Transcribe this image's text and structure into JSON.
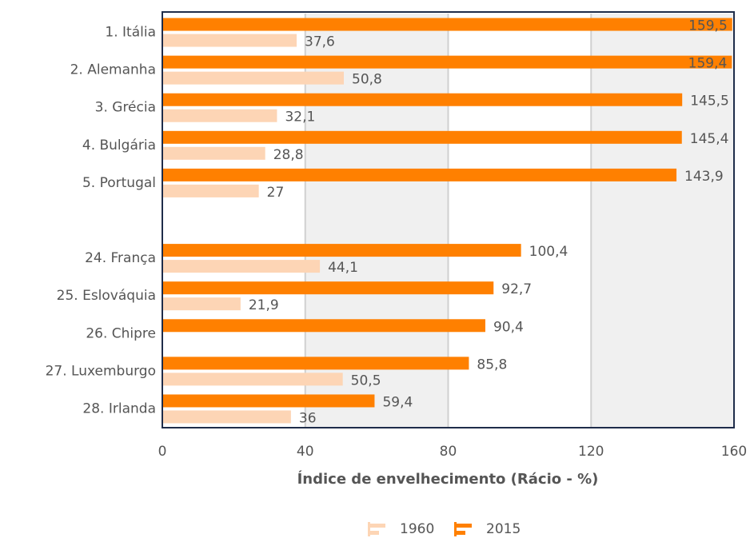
{
  "chart_data": {
    "type": "hbar",
    "x_label": "Índice de envelhecimento (Rácio - %)",
    "categories": [
      "1. Itália",
      "2. Alemanha",
      "3. Grécia",
      "4. Bulgária",
      "5. Portugal",
      null,
      "24. França",
      "25. Eslováquia",
      "26. Chipre",
      "27. Luxemburgo",
      "28. Irlanda"
    ],
    "series": [
      {
        "name": "2015",
        "color": "#ff8000",
        "values": [
          159.5,
          159.4,
          145.5,
          145.4,
          143.9,
          null,
          100.4,
          92.7,
          90.4,
          85.8,
          59.4
        ],
        "value_labels": [
          "159,5",
          "159,4",
          "145,5",
          "145,4",
          "143,9",
          null,
          "100,4",
          "92,7",
          "90,4",
          "85,8",
          "59,4"
        ]
      },
      {
        "name": "1960",
        "color": "#fdd5b5",
        "values": [
          37.6,
          50.8,
          32.1,
          28.8,
          27,
          null,
          44.1,
          21.9,
          null,
          50.5,
          36
        ],
        "value_labels": [
          "37,6",
          "50,8",
          "32,1",
          "28,8",
          "27",
          null,
          "44,1",
          "21,9",
          null,
          "50,5",
          "36"
        ]
      }
    ],
    "xlim": [
      0,
      160
    ],
    "xticks": [
      0,
      40,
      80,
      120,
      160
    ],
    "grid": true,
    "legend": "bottom"
  }
}
